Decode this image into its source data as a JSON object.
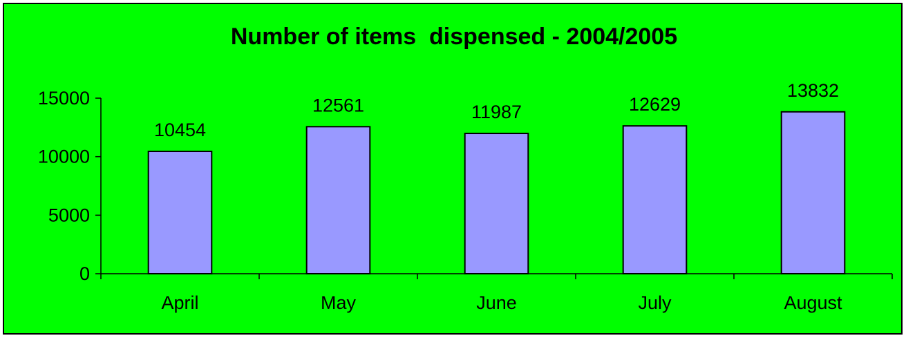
{
  "chart_data": {
    "type": "bar",
    "title": "Number of items  dispensed - 2004/2005",
    "xlabel": "",
    "ylabel": "",
    "categories": [
      "April",
      "May",
      "June",
      "July",
      "August"
    ],
    "values": [
      10454,
      12561,
      11987,
      12629,
      13832
    ],
    "data_labels": [
      "10454",
      "12561",
      "11987",
      "12629",
      "13832"
    ],
    "yticks": [
      0,
      5000,
      10000,
      15000
    ],
    "ytick_labels": [
      "0",
      "5000",
      "10000",
      "15000"
    ],
    "ylim": [
      0,
      15000
    ],
    "grid": false,
    "legend": "none",
    "colors": {
      "background": "#00ff00",
      "bar_fill": "#9999ff",
      "bar_stroke": "#000000",
      "axis": "#000000",
      "text": "#000000"
    }
  }
}
